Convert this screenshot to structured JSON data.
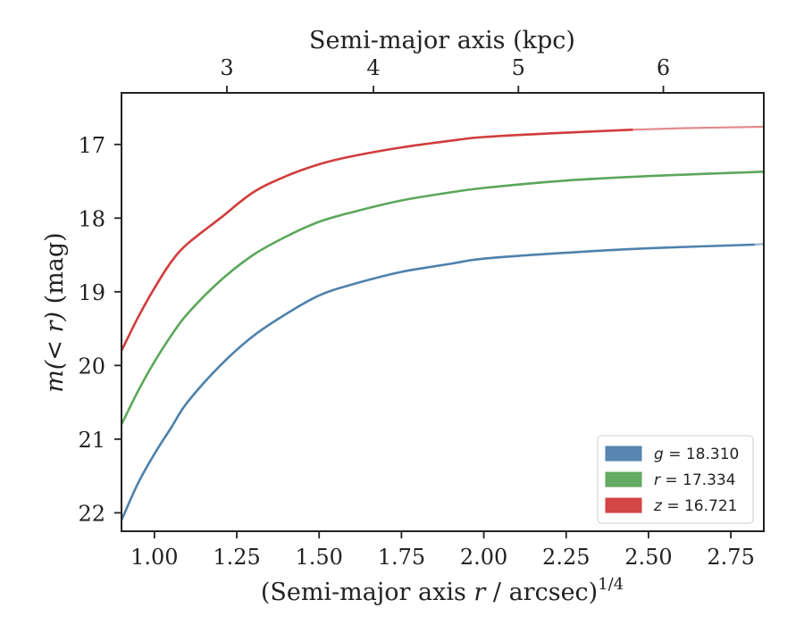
{
  "chart_data": {
    "type": "line",
    "xlabel": "(Semi-major axis r / arcsec)^1/4",
    "xlabel_parts": {
      "pre": "(Semi-major axis ",
      "var": "r",
      "post": " / arcsec)",
      "sup": "1/4"
    },
    "ylabel": "m(< r) (mag)",
    "ylabel_parts": {
      "var": "m(< r)",
      "post": " (mag)"
    },
    "top_xlabel": "Semi-major axis (kpc)",
    "xlim": [
      0.9,
      2.85
    ],
    "ylim": [
      22.25,
      16.3
    ],
    "y_inverted": true,
    "x_ticks": [
      1.0,
      1.25,
      1.5,
      1.75,
      2.0,
      2.25,
      2.5,
      2.75
    ],
    "x_tick_labels": [
      "1.00",
      "1.25",
      "1.50",
      "1.75",
      "2.00",
      "2.25",
      "2.50",
      "2.75"
    ],
    "y_ticks": [
      17,
      18,
      19,
      20,
      21,
      22
    ],
    "y_tick_labels": [
      "17",
      "18",
      "19",
      "20",
      "21",
      "22"
    ],
    "top_ticks_kpc": [
      3,
      4,
      5,
      6
    ],
    "top_tick_labels": [
      "3",
      "4",
      "5",
      "6"
    ],
    "top_tick_positions_x": [
      1.22,
      1.665,
      2.105,
      2.545
    ],
    "grid": false,
    "legend_position": "lower-right",
    "series": [
      {
        "name": "g = 18.310",
        "legend_var": "g",
        "legend_value": "= 18.310",
        "color": "#4e81ac",
        "x": [
          0.9,
          0.95,
          1.0,
          1.05,
          1.1,
          1.2,
          1.3,
          1.4,
          1.5,
          1.6,
          1.75,
          1.9,
          2.0,
          2.25,
          2.5,
          2.82
        ],
        "y": [
          22.1,
          21.6,
          21.2,
          20.85,
          20.5,
          20.0,
          19.6,
          19.3,
          19.05,
          18.9,
          18.73,
          18.62,
          18.55,
          18.47,
          18.41,
          18.36
        ],
        "extension": {
          "x": [
            2.82,
            2.85
          ],
          "y": [
            18.36,
            18.35
          ]
        }
      },
      {
        "name": "r = 17.334",
        "legend_var": "r",
        "legend_value": "= 17.334",
        "color": "#5ba75a",
        "x": [
          0.9,
          0.95,
          1.0,
          1.05,
          1.1,
          1.2,
          1.3,
          1.4,
          1.5,
          1.6,
          1.75,
          1.9,
          2.0,
          2.25,
          2.5,
          2.85
        ],
        "y": [
          20.8,
          20.35,
          19.95,
          19.6,
          19.3,
          18.85,
          18.5,
          18.25,
          18.05,
          17.92,
          17.76,
          17.65,
          17.59,
          17.49,
          17.43,
          17.37
        ]
      },
      {
        "name": "z = 16.721",
        "legend_var": "z",
        "legend_value": "= 16.721",
        "color": "#d13c3c",
        "x": [
          0.9,
          0.95,
          1.0,
          1.05,
          1.1,
          1.2,
          1.3,
          1.4,
          1.5,
          1.6,
          1.75,
          1.9,
          2.0,
          2.25,
          2.45
        ],
        "y": [
          19.8,
          19.35,
          18.95,
          18.6,
          18.35,
          18.0,
          17.65,
          17.43,
          17.27,
          17.16,
          17.04,
          16.95,
          16.9,
          16.84,
          16.8
        ],
        "extension": {
          "x": [
            2.45,
            2.6,
            2.85
          ],
          "y": [
            16.8,
            16.78,
            16.76
          ]
        }
      }
    ]
  }
}
